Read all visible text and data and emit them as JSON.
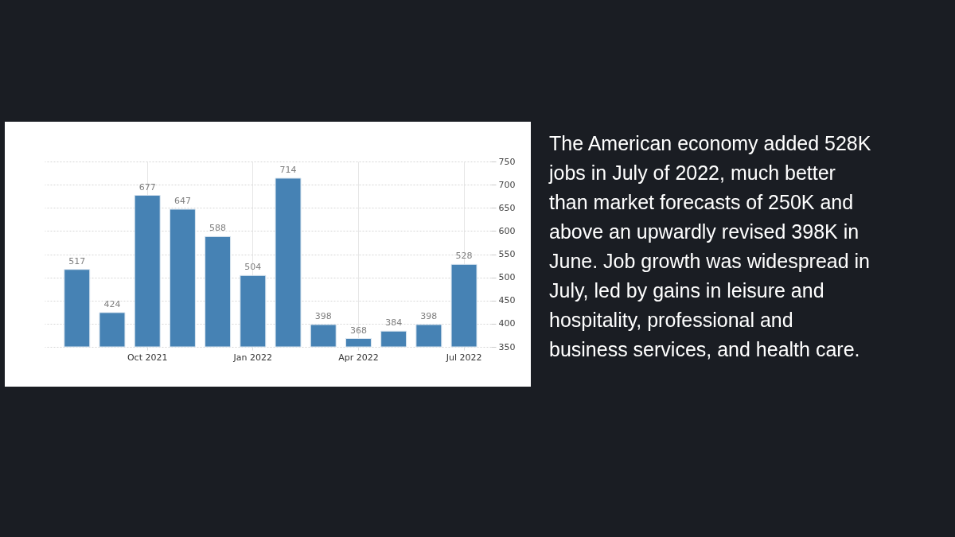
{
  "chart_data": {
    "type": "bar",
    "categories": [
      null,
      null,
      "Oct 2021",
      null,
      null,
      "Jan 2022",
      null,
      null,
      "Apr 2022",
      null,
      null,
      "Jul 2022"
    ],
    "values": [
      517,
      424,
      677,
      647,
      588,
      504,
      714,
      398,
      368,
      384,
      398,
      528
    ],
    "color": "#4682b4",
    "ylim": [
      350,
      750
    ],
    "yticks": [
      350,
      400,
      450,
      500,
      550,
      600,
      650,
      700,
      750
    ],
    "grid": true,
    "data_labels": true,
    "annotations": [
      "The American economy added 528K jobs in July of 2022, much better than market forecasts of 250K and above an upwardly revised 398K in June. Job growth was widespread in July, led by gains in leisure and hospitality, professional and business services, and health care."
    ]
  }
}
